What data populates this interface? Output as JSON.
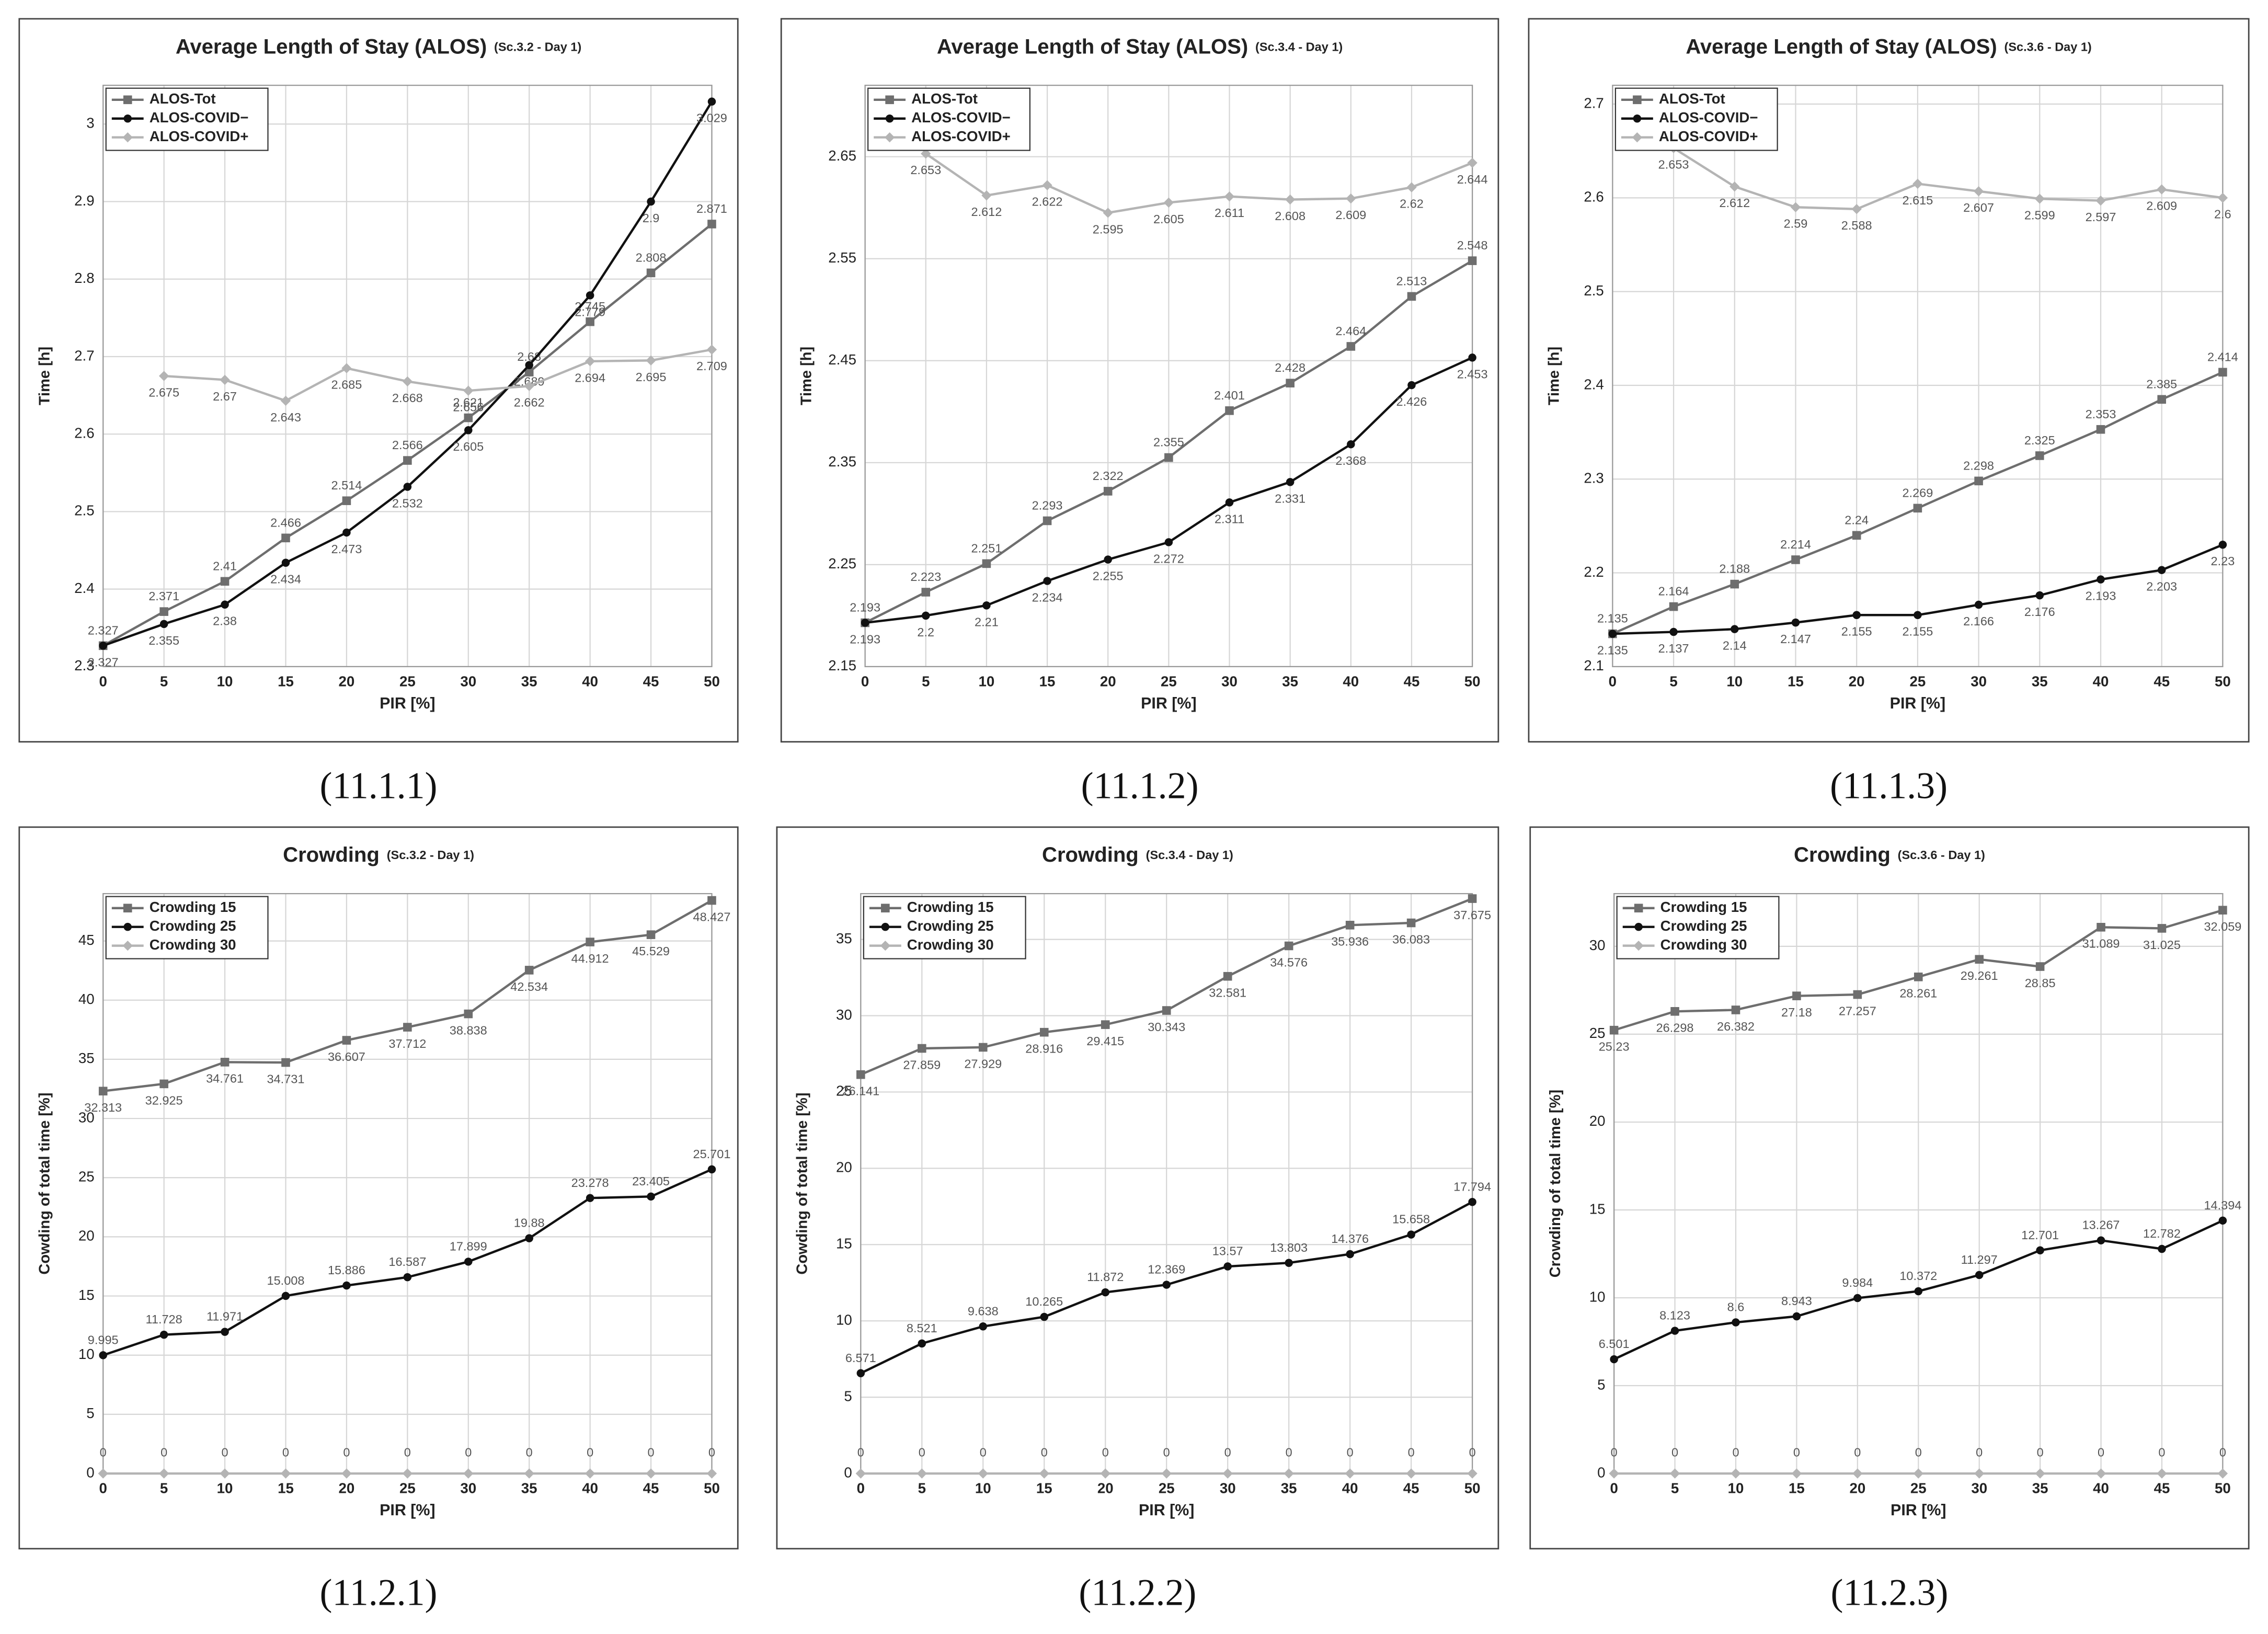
{
  "chart_data": [
    {
      "type": "line",
      "title": "Average Length of Stay (ALOS)",
      "subtitle": "(Sc.3.2 - Day 1)",
      "caption": "(11.1.1)",
      "xlabel": "PIR [%]",
      "ylabel": "Time [h]",
      "x": [
        0,
        5,
        10,
        15,
        20,
        25,
        30,
        35,
        40,
        45,
        50
      ],
      "xlim": [
        0,
        50
      ],
      "xticks": [
        0,
        5,
        10,
        15,
        20,
        25,
        30,
        35,
        40,
        45,
        50
      ],
      "ylim": [
        2.3,
        3.05
      ],
      "yticks": [
        2.3,
        2.4,
        2.5,
        2.6,
        2.7,
        2.8,
        2.9,
        3
      ],
      "grid": true,
      "legend": "top-left",
      "series": [
        {
          "name": "ALOS-Tot",
          "color": "#6e6e6e",
          "marker": "square",
          "values": [
            2.327,
            2.371,
            2.41,
            2.466,
            2.514,
            2.566,
            2.621,
            2.68,
            2.745,
            2.808,
            2.871
          ]
        },
        {
          "name": "ALOS-COVID−",
          "color": "#111111",
          "marker": "circle",
          "values": [
            2.327,
            2.355,
            2.38,
            2.434,
            2.473,
            2.532,
            2.605,
            2.689,
            2.779,
            2.9,
            3.029
          ]
        },
        {
          "name": "ALOS-COVID+",
          "color": "#b4b4b4",
          "marker": "diamond",
          "values": [
            null,
            2.675,
            2.67,
            2.643,
            2.685,
            2.668,
            2.656,
            2.662,
            2.694,
            2.695,
            2.709
          ]
        }
      ]
    },
    {
      "type": "line",
      "title": "Average Length of Stay (ALOS)",
      "subtitle": "(Sc.3.4 - Day 1)",
      "caption": "(11.1.2)",
      "xlabel": "PIR [%]",
      "ylabel": "Time [h]",
      "x": [
        0,
        5,
        10,
        15,
        20,
        25,
        30,
        35,
        40,
        45,
        50
      ],
      "xlim": [
        0,
        50
      ],
      "xticks": [
        0,
        5,
        10,
        15,
        20,
        25,
        30,
        35,
        40,
        45,
        50
      ],
      "ylim": [
        2.15,
        2.72
      ],
      "yticks": [
        2.15,
        2.25,
        2.35,
        2.45,
        2.55,
        2.65
      ],
      "grid": true,
      "legend": "top-left",
      "series": [
        {
          "name": "ALOS-Tot",
          "color": "#6e6e6e",
          "marker": "square",
          "values": [
            2.193,
            2.223,
            2.251,
            2.293,
            2.322,
            2.355,
            2.401,
            2.428,
            2.464,
            2.513,
            2.548
          ]
        },
        {
          "name": "ALOS-COVID−",
          "color": "#111111",
          "marker": "circle",
          "values": [
            2.193,
            2.2,
            2.21,
            2.234,
            2.255,
            2.272,
            2.311,
            2.331,
            2.368,
            2.426,
            2.453
          ]
        },
        {
          "name": "ALOS-COVID+",
          "color": "#b4b4b4",
          "marker": "diamond",
          "values": [
            null,
            2.653,
            2.612,
            2.622,
            2.595,
            2.605,
            2.611,
            2.608,
            2.609,
            2.62,
            2.644
          ]
        }
      ]
    },
    {
      "type": "line",
      "title": "Average Length of Stay (ALOS)",
      "subtitle": "(Sc.3.6 - Day 1)",
      "caption": "(11.1.3)",
      "xlabel": "PIR [%]",
      "ylabel": "Time [h]",
      "x": [
        0,
        5,
        10,
        15,
        20,
        25,
        30,
        35,
        40,
        45,
        50
      ],
      "xlim": [
        0,
        50
      ],
      "xticks": [
        0,
        5,
        10,
        15,
        20,
        25,
        30,
        35,
        40,
        45,
        50
      ],
      "ylim": [
        2.1,
        2.72
      ],
      "yticks": [
        2.1,
        2.2,
        2.3,
        2.4,
        2.5,
        2.6,
        2.7
      ],
      "grid": true,
      "legend": "top-left",
      "series": [
        {
          "name": "ALOS-Tot",
          "color": "#6e6e6e",
          "marker": "square",
          "values": [
            2.135,
            2.164,
            2.188,
            2.214,
            2.24,
            2.269,
            2.298,
            2.325,
            2.353,
            2.385,
            2.414
          ]
        },
        {
          "name": "ALOS-COVID−",
          "color": "#111111",
          "marker": "circle",
          "values": [
            2.135,
            2.137,
            2.14,
            2.147,
            2.155,
            2.155,
            2.166,
            2.176,
            2.193,
            2.203,
            2.23
          ]
        },
        {
          "name": "ALOS-COVID+",
          "color": "#b4b4b4",
          "marker": "diamond",
          "values": [
            null,
            2.653,
            2.612,
            2.59,
            2.588,
            2.615,
            2.607,
            2.599,
            2.597,
            2.609,
            2.6
          ]
        }
      ]
    },
    {
      "type": "line",
      "title": "Crowding",
      "subtitle": "(Sc.3.2 - Day 1)",
      "caption": "(11.2.1)",
      "xlabel": "PIR [%]",
      "ylabel": "Cowding of total time [%]",
      "x": [
        0,
        5,
        10,
        15,
        20,
        25,
        30,
        35,
        40,
        45,
        50
      ],
      "xlim": [
        0,
        50
      ],
      "xticks": [
        0,
        5,
        10,
        15,
        20,
        25,
        30,
        35,
        40,
        45,
        50
      ],
      "ylim": [
        0,
        49
      ],
      "yticks": [
        0,
        5,
        10,
        15,
        20,
        25,
        30,
        35,
        40,
        45
      ],
      "grid": true,
      "legend": "top-left",
      "series": [
        {
          "name": "Crowding 15",
          "color": "#6e6e6e",
          "marker": "square",
          "values": [
            32.313,
            32.925,
            34.761,
            34.731,
            36.607,
            37.712,
            38.838,
            42.534,
            44.912,
            45.529,
            48.427
          ]
        },
        {
          "name": "Crowding 25",
          "color": "#111111",
          "marker": "circle",
          "values": [
            9.995,
            11.728,
            11.971,
            15.008,
            15.886,
            16.587,
            17.899,
            19.88,
            23.278,
            23.405,
            25.701
          ]
        },
        {
          "name": "Crowding 30",
          "color": "#b4b4b4",
          "marker": "diamond",
          "values": [
            0,
            0,
            0,
            0,
            0,
            0,
            0,
            0,
            0,
            0,
            0
          ]
        }
      ]
    },
    {
      "type": "line",
      "title": "Crowding",
      "subtitle": "(Sc.3.4 - Day 1)",
      "caption": "(11.2.2)",
      "xlabel": "PIR [%]",
      "ylabel": "Cowding of total time [%]",
      "x": [
        0,
        5,
        10,
        15,
        20,
        25,
        30,
        35,
        40,
        45,
        50
      ],
      "xlim": [
        0,
        50
      ],
      "xticks": [
        0,
        5,
        10,
        15,
        20,
        25,
        30,
        35,
        40,
        45,
        50
      ],
      "ylim": [
        0,
        38
      ],
      "yticks": [
        0,
        5,
        10,
        15,
        20,
        25,
        30,
        35
      ],
      "grid": true,
      "legend": "top-left",
      "series": [
        {
          "name": "Crowding 15",
          "color": "#6e6e6e",
          "marker": "square",
          "values": [
            26.141,
            27.859,
            27.929,
            28.916,
            29.415,
            30.343,
            32.581,
            34.576,
            35.936,
            36.083,
            37.675
          ]
        },
        {
          "name": "Crowding 25",
          "color": "#111111",
          "marker": "circle",
          "values": [
            6.571,
            8.521,
            9.638,
            10.265,
            11.872,
            12.369,
            13.57,
            13.803,
            14.376,
            15.658,
            17.794
          ]
        },
        {
          "name": "Crowding 30",
          "color": "#b4b4b4",
          "marker": "diamond",
          "values": [
            0,
            0,
            0,
            0,
            0,
            0,
            0,
            0,
            0,
            0,
            0
          ]
        }
      ]
    },
    {
      "type": "line",
      "title": "Crowding",
      "subtitle": "(Sc.3.6 - Day 1)",
      "caption": "(11.2.3)",
      "xlabel": "PIR [%]",
      "ylabel": "Crowding of total time [%]",
      "x": [
        0,
        5,
        10,
        15,
        20,
        25,
        30,
        35,
        40,
        45,
        50
      ],
      "xlim": [
        0,
        50
      ],
      "xticks": [
        0,
        5,
        10,
        15,
        20,
        25,
        30,
        35,
        40,
        45,
        50
      ],
      "ylim": [
        0,
        33
      ],
      "yticks": [
        0,
        5,
        10,
        15,
        20,
        25,
        30
      ],
      "grid": true,
      "legend": "top-left",
      "series": [
        {
          "name": "Crowding 15",
          "color": "#6e6e6e",
          "marker": "square",
          "values": [
            25.23,
            26.298,
            26.382,
            27.18,
            27.257,
            28.261,
            29.261,
            28.85,
            31.089,
            31.025,
            32.059
          ]
        },
        {
          "name": "Crowding 25",
          "color": "#111111",
          "marker": "circle",
          "values": [
            6.501,
            8.123,
            8.6,
            8.943,
            9.984,
            10.372,
            11.297,
            12.701,
            13.267,
            12.782,
            14.394
          ]
        },
        {
          "name": "Crowding 30",
          "color": "#b4b4b4",
          "marker": "diamond",
          "values": [
            0,
            0,
            0,
            0,
            0,
            0,
            0,
            0,
            0,
            0,
            0
          ]
        }
      ]
    }
  ]
}
